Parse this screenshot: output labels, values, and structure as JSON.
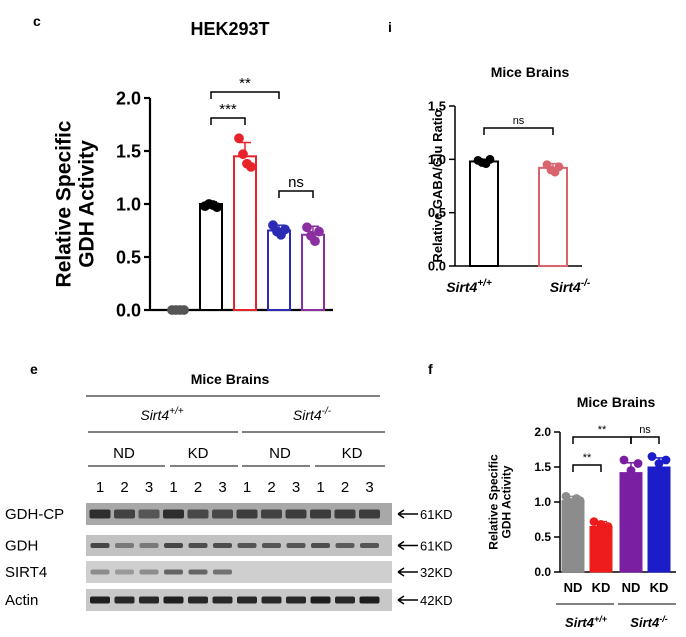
{
  "panel_c": {
    "letter": "c",
    "chart_data": {
      "type": "bar",
      "title": "HEK293T",
      "ylabel": [
        "Relative Specific",
        "GDH Activity"
      ],
      "ylim": [
        0,
        2.0
      ],
      "yticks": [
        "0.0",
        "0.5",
        "1.0",
        "1.5",
        "2.0"
      ],
      "categories": [
        "",
        "",
        "",
        "",
        ""
      ],
      "values": [
        0.0,
        1.0,
        1.45,
        0.75,
        0.71
      ],
      "errors": [
        0.02,
        0.02,
        0.13,
        0.05,
        0.08
      ],
      "colors": [
        "#555555",
        "#000000",
        "#e8232a",
        "#2b2bb5",
        "#8b2fa0"
      ],
      "points": [
        [
          0.0,
          0.0,
          0.0,
          0.0
        ],
        [
          0.98,
          1.0,
          0.99,
          0.97
        ],
        [
          1.62,
          1.47,
          1.38,
          1.35
        ],
        [
          0.8,
          0.74,
          0.71,
          0.76
        ],
        [
          0.78,
          0.7,
          0.65,
          0.74
        ]
      ],
      "significance": [
        {
          "from": 1,
          "to": 3,
          "label": "**"
        },
        {
          "from": 1,
          "to": 2,
          "label": "***"
        },
        {
          "from": 3,
          "to": 4,
          "label": "ns"
        }
      ]
    }
  },
  "panel_i": {
    "letter": "i",
    "chart_data": {
      "type": "bar",
      "title": "Mice Brains",
      "ylabel": "Relative GABA/Glu Ratio",
      "ylim": [
        0,
        1.5
      ],
      "yticks": [
        "0.0",
        "0.5",
        "1.0",
        "1.5"
      ],
      "categories": [
        {
          "base": "Sirt4",
          "sup": "+/+"
        },
        {
          "base": "Sirt4",
          "sup": "-/-"
        }
      ],
      "values": [
        0.98,
        0.92
      ],
      "errors": [
        0.02,
        0.04
      ],
      "colors": [
        "#000000",
        "#d9646e"
      ],
      "points": [
        [
          0.99,
          0.97,
          0.96,
          1.0
        ],
        [
          0.95,
          0.9,
          0.88,
          0.93
        ]
      ],
      "significance": [
        {
          "from": 0,
          "to": 1,
          "label": "ns"
        }
      ]
    }
  },
  "panel_e": {
    "letter": "e",
    "title": "Mice Brains",
    "groups": [
      {
        "base": "Sirt4",
        "sup": "+/+"
      },
      {
        "base": "Sirt4",
        "sup": "-/-"
      }
    ],
    "diets": [
      "ND",
      "KD",
      "ND",
      "KD"
    ],
    "lanes": [
      "1",
      "2",
      "3",
      "1",
      "2",
      "3",
      "1",
      "2",
      "3",
      "1",
      "2",
      "3"
    ],
    "blots": [
      {
        "name": "GDH-CP",
        "mw": "61KD"
      },
      {
        "name": "GDH",
        "mw": "61KD"
      },
      {
        "name": "SIRT4",
        "mw": "32KD"
      },
      {
        "name": "Actin",
        "mw": "42KD"
      }
    ]
  },
  "panel_f": {
    "letter": "f",
    "chart_data": {
      "type": "bar",
      "title": "Mice Brains",
      "ylabel": [
        "Relative Specific",
        "GDH Activity"
      ],
      "ylim": [
        0,
        2.0
      ],
      "yticks": [
        "0.0",
        "0.5",
        "1.0",
        "1.5",
        "2.0"
      ],
      "categories": [
        "ND",
        "KD",
        "ND",
        "KD"
      ],
      "group_labels": [
        {
          "base": "Sirt4",
          "sup": "+/+"
        },
        {
          "base": "Sirt4",
          "sup": "-/-"
        }
      ],
      "values": [
        1.02,
        0.65,
        1.42,
        1.5
      ],
      "errors": [
        0.06,
        0.07,
        0.14,
        0.13
      ],
      "colors": [
        "#8c8c8c",
        "#ee1c1c",
        "#7a1fa2",
        "#1c1cc8"
      ],
      "points": [
        [
          1.08,
          1.0,
          0.95,
          1.05,
          1.02
        ],
        [
          0.72,
          0.6,
          0.68,
          0.58,
          0.65
        ],
        [
          1.6,
          1.2,
          1.45,
          1.3,
          1.55
        ],
        [
          1.65,
          1.35,
          1.55,
          1.4,
          1.6
        ]
      ],
      "significance": [
        {
          "from": 0,
          "to": 2,
          "label": "**"
        },
        {
          "from": 0,
          "to": 1,
          "label": "**"
        },
        {
          "from": 2,
          "to": 3,
          "label": "ns"
        }
      ]
    }
  }
}
